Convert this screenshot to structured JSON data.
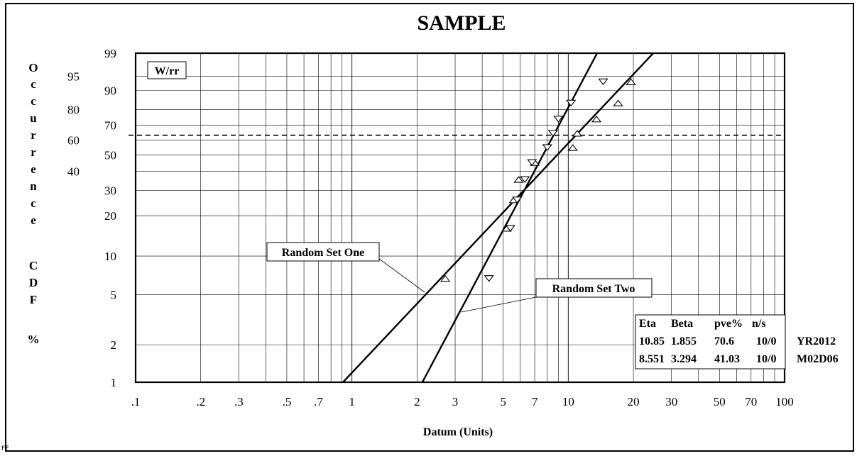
{
  "corner_mark": "FF",
  "chart_data": {
    "type": "scatter",
    "title": "SAMPLE",
    "xlabel": "Datum (Units)",
    "ylabel": "Occurrence CDF %",
    "x_scale": "log",
    "y_scale": "weibull",
    "xlim": [
      0.1,
      100
    ],
    "ylim": [
      1,
      99
    ],
    "x_ticks": [
      {
        "v": 0.1,
        "label": ".1"
      },
      {
        "v": 0.2,
        "label": ".2"
      },
      {
        "v": 0.3,
        "label": ".3"
      },
      {
        "v": 0.5,
        "label": ".5"
      },
      {
        "v": 0.7,
        "label": ".7"
      },
      {
        "v": 1,
        "label": "1"
      },
      {
        "v": 2,
        "label": "2"
      },
      {
        "v": 3,
        "label": "3"
      },
      {
        "v": 5,
        "label": "5"
      },
      {
        "v": 7,
        "label": "7"
      },
      {
        "v": 10,
        "label": "10"
      },
      {
        "v": 20,
        "label": "20"
      },
      {
        "v": 30,
        "label": "30"
      },
      {
        "v": 50,
        "label": "50"
      },
      {
        "v": 70,
        "label": "70"
      },
      {
        "v": 100,
        "label": "100"
      }
    ],
    "y_ticks_inner": [
      {
        "v": 99,
        "label": "99"
      },
      {
        "v": 90,
        "label": "90"
      },
      {
        "v": 70,
        "label": "70"
      },
      {
        "v": 50,
        "label": "50"
      },
      {
        "v": 30,
        "label": "30"
      },
      {
        "v": 20,
        "label": "20"
      },
      {
        "v": 10,
        "label": "10"
      },
      {
        "v": 5,
        "label": "5"
      },
      {
        "v": 2,
        "label": "2"
      },
      {
        "v": 1,
        "label": "1"
      }
    ],
    "y_ticks_outer": [
      {
        "v": 95,
        "label": "95"
      },
      {
        "v": 80,
        "label": "80"
      },
      {
        "v": 60,
        "label": "60"
      },
      {
        "v": 40,
        "label": "40"
      }
    ],
    "grid": true,
    "reference_line_y": 63.2,
    "method_label": "W/rr",
    "series": [
      {
        "name": "Random Set One",
        "marker": "triangle-up",
        "eta": 10.85,
        "beta": 1.855,
        "points": [
          {
            "x": 2.7,
            "y": 6.7
          },
          {
            "x": 5.2,
            "y": 16.2
          },
          {
            "x": 5.6,
            "y": 25.9
          },
          {
            "x": 5.9,
            "y": 35.5
          },
          {
            "x": 7.0,
            "y": 45.2
          },
          {
            "x": 10.5,
            "y": 54.8
          },
          {
            "x": 11.0,
            "y": 64.5
          },
          {
            "x": 13.5,
            "y": 74.1
          },
          {
            "x": 17.0,
            "y": 83.8
          },
          {
            "x": 19.5,
            "y": 93.3
          }
        ]
      },
      {
        "name": "Random Set Two",
        "marker": "triangle-down",
        "eta": 8.551,
        "beta": 3.294,
        "points": [
          {
            "x": 4.3,
            "y": 6.7
          },
          {
            "x": 5.4,
            "y": 16.2
          },
          {
            "x": 5.8,
            "y": 25.9
          },
          {
            "x": 6.3,
            "y": 35.5
          },
          {
            "x": 6.8,
            "y": 45.2
          },
          {
            "x": 8.0,
            "y": 54.8
          },
          {
            "x": 8.5,
            "y": 64.5
          },
          {
            "x": 9.0,
            "y": 74.1
          },
          {
            "x": 10.3,
            "y": 83.8
          },
          {
            "x": 14.5,
            "y": 93.3
          }
        ]
      }
    ],
    "results_table": {
      "headers": [
        "Eta",
        "Beta",
        "pve%",
        "n/s"
      ],
      "rows": [
        [
          "10.85",
          "1.855",
          "70.6",
          "10/0"
        ],
        [
          "8.551",
          "3.294",
          "41.03",
          "10/0"
        ]
      ]
    },
    "side_labels": [
      "YR2012",
      "M02D06"
    ]
  }
}
